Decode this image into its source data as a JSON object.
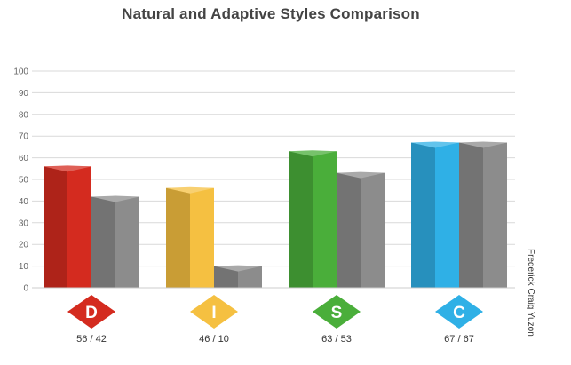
{
  "chart_data": {
    "type": "bar",
    "title": "Natural and Adaptive Styles Comparison",
    "categories": [
      "D",
      "I",
      "S",
      "C"
    ],
    "category_colors": [
      "#d42b1f",
      "#f5c041",
      "#4aae3a",
      "#2fb0e6"
    ],
    "secondary_color": "#8c8c8c",
    "series": [
      {
        "values": [
          56,
          46,
          63,
          67
        ]
      },
      {
        "values": [
          42,
          10,
          53,
          67
        ]
      }
    ],
    "value_labels": [
      "56 / 42",
      "46 / 10",
      "63 / 53",
      "67 / 67"
    ],
    "y_ticks": [
      0,
      10,
      20,
      30,
      40,
      50,
      60,
      70,
      80,
      90,
      100
    ],
    "ylim": [
      0,
      100
    ],
    "grid": true
  },
  "author": "Frederick Craig Yuzon"
}
